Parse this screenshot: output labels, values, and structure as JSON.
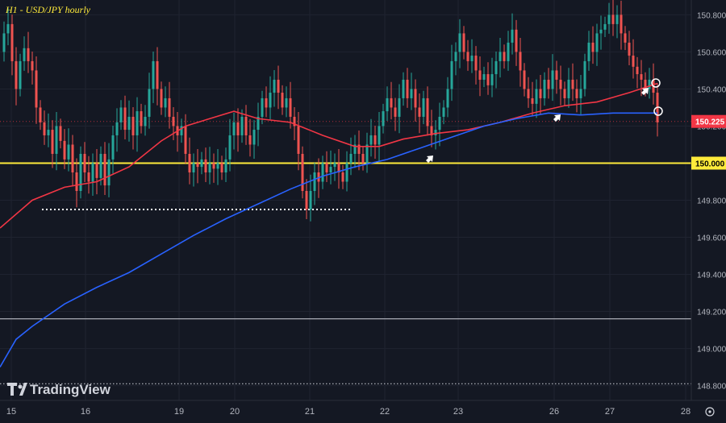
{
  "chart_data": {
    "type": "candlestick",
    "title": "H1 - USD/JPY hourly",
    "branding": "TradingView",
    "y_axis": {
      "range": [
        148.72,
        150.88
      ],
      "ticks": [
        "150.800",
        "150.600",
        "150.400",
        "150.200",
        "150.000",
        "149.800",
        "149.600",
        "149.400",
        "149.200",
        "149.000",
        "148.800"
      ]
    },
    "x_axis": {
      "labels": [
        "15",
        "16",
        "19",
        "20",
        "21",
        "22",
        "23",
        "26",
        "27",
        "28"
      ]
    },
    "current_price": {
      "value": 150.225,
      "label": "150.225",
      "color": "#f23645"
    },
    "horizontal_lines": [
      {
        "value": 150.0,
        "label": "150.000",
        "color": "#ffeb3b",
        "style": "solid"
      },
      {
        "value": 149.75,
        "label": "",
        "color": "#ffffff",
        "style": "dotted"
      },
      {
        "value": 149.16,
        "label": "",
        "color": "#d1d4dc",
        "style": "solid"
      },
      {
        "value": 148.81,
        "label": "",
        "color": "#d1d4dc",
        "style": "dotted"
      }
    ],
    "moving_averages": [
      {
        "name": "",
        "color": "#f23645",
        "points": [
          [
            0,
            149.65
          ],
          [
            40,
            149.8
          ],
          [
            80,
            149.87
          ],
          [
            120,
            149.9
          ],
          [
            160,
            149.98
          ],
          [
            200,
            150.12
          ],
          [
            230,
            150.2
          ],
          [
            260,
            150.24
          ],
          [
            290,
            150.28
          ],
          [
            320,
            150.24
          ],
          [
            360,
            150.22
          ],
          [
            400,
            150.15
          ],
          [
            440,
            150.09
          ],
          [
            470,
            150.09
          ],
          [
            500,
            150.13
          ],
          [
            540,
            150.16
          ],
          [
            580,
            150.18
          ],
          [
            620,
            150.22
          ],
          [
            660,
            150.27
          ],
          [
            700,
            150.31
          ],
          [
            740,
            150.33
          ],
          [
            780,
            150.38
          ],
          [
            815,
            150.43
          ]
        ]
      },
      {
        "name": "",
        "color": "#2962ff",
        "points": [
          [
            0,
            148.9
          ],
          [
            20,
            149.05
          ],
          [
            40,
            149.12
          ],
          [
            80,
            149.24
          ],
          [
            120,
            149.33
          ],
          [
            160,
            149.41
          ],
          [
            200,
            149.51
          ],
          [
            240,
            149.61
          ],
          [
            280,
            149.7
          ],
          [
            320,
            149.78
          ],
          [
            360,
            149.86
          ],
          [
            400,
            149.93
          ],
          [
            440,
            149.98
          ],
          [
            480,
            150.02
          ],
          [
            520,
            150.08
          ],
          [
            560,
            150.14
          ],
          [
            600,
            150.2
          ],
          [
            640,
            150.24
          ],
          [
            680,
            150.27
          ],
          [
            720,
            150.26
          ],
          [
            760,
            150.27
          ],
          [
            790,
            150.27
          ],
          [
            815,
            150.27
          ]
        ]
      }
    ],
    "price_path": [
      [
        0,
        150.6
      ],
      [
        5,
        150.7
      ],
      [
        10,
        150.75
      ],
      [
        15,
        150.55
      ],
      [
        20,
        150.4
      ],
      [
        25,
        150.55
      ],
      [
        30,
        150.62
      ],
      [
        35,
        150.55
      ],
      [
        40,
        150.5
      ],
      [
        45,
        150.3
      ],
      [
        50,
        150.22
      ],
      [
        55,
        150.15
      ],
      [
        60,
        150.18
      ],
      [
        65,
        150.05
      ],
      [
        70,
        150.2
      ],
      [
        75,
        150.12
      ],
      [
        80,
        150.02
      ],
      [
        85,
        150.1
      ],
      [
        90,
        149.95
      ],
      [
        95,
        149.85
      ],
      [
        100,
        150.05
      ],
      [
        105,
        149.95
      ],
      [
        110,
        149.9
      ],
      [
        115,
        150.0
      ],
      [
        120,
        149.92
      ],
      [
        125,
        150.05
      ],
      [
        130,
        149.88
      ],
      [
        135,
        150.02
      ],
      [
        140,
        150.15
      ],
      [
        145,
        150.22
      ],
      [
        150,
        150.3
      ],
      [
        155,
        150.18
      ],
      [
        160,
        150.25
      ],
      [
        165,
        150.15
      ],
      [
        170,
        150.28
      ],
      [
        175,
        150.2
      ],
      [
        180,
        150.25
      ],
      [
        185,
        150.4
      ],
      [
        190,
        150.55
      ],
      [
        195,
        150.4
      ],
      [
        200,
        150.3
      ],
      [
        205,
        150.35
      ],
      [
        210,
        150.25
      ],
      [
        215,
        150.2
      ],
      [
        220,
        150.15
      ],
      [
        225,
        150.2
      ],
      [
        230,
        150.05
      ],
      [
        235,
        149.95
      ],
      [
        240,
        150.0
      ],
      [
        245,
        149.98
      ],
      [
        250,
        150.02
      ],
      [
        255,
        149.95
      ],
      [
        260,
        150.0
      ],
      [
        265,
        149.97
      ],
      [
        270,
        150.0
      ],
      [
        275,
        149.95
      ],
      [
        280,
        150.02
      ],
      [
        285,
        150.15
      ],
      [
        290,
        150.22
      ],
      [
        295,
        150.15
      ],
      [
        300,
        150.25
      ],
      [
        305,
        150.15
      ],
      [
        310,
        150.1
      ],
      [
        315,
        150.18
      ],
      [
        320,
        150.25
      ],
      [
        325,
        150.35
      ],
      [
        330,
        150.3
      ],
      [
        335,
        150.38
      ],
      [
        340,
        150.45
      ],
      [
        345,
        150.38
      ],
      [
        350,
        150.3
      ],
      [
        355,
        150.35
      ],
      [
        360,
        150.25
      ],
      [
        365,
        150.2
      ],
      [
        370,
        150.05
      ],
      [
        375,
        149.85
      ],
      [
        380,
        149.75
      ],
      [
        385,
        149.85
      ],
      [
        390,
        149.95
      ],
      [
        395,
        149.9
      ],
      [
        400,
        150.0
      ],
      [
        405,
        149.95
      ],
      [
        410,
        149.98
      ],
      [
        415,
        150.0
      ],
      [
        420,
        149.95
      ],
      [
        425,
        149.9
      ],
      [
        430,
        150.0
      ],
      [
        435,
        150.05
      ],
      [
        440,
        150.1
      ],
      [
        445,
        150.05
      ],
      [
        450,
        150.0
      ],
      [
        455,
        150.1
      ],
      [
        460,
        150.15
      ],
      [
        465,
        150.1
      ],
      [
        470,
        150.2
      ],
      [
        475,
        150.28
      ],
      [
        480,
        150.35
      ],
      [
        485,
        150.3
      ],
      [
        490,
        150.25
      ],
      [
        495,
        150.35
      ],
      [
        500,
        150.45
      ],
      [
        505,
        150.35
      ],
      [
        510,
        150.4
      ],
      [
        515,
        150.3
      ],
      [
        520,
        150.25
      ],
      [
        525,
        150.35
      ],
      [
        530,
        150.2
      ],
      [
        535,
        150.15
      ],
      [
        540,
        150.18
      ],
      [
        545,
        150.25
      ],
      [
        550,
        150.3
      ],
      [
        555,
        150.4
      ],
      [
        560,
        150.55
      ],
      [
        565,
        150.6
      ],
      [
        570,
        150.7
      ],
      [
        575,
        150.6
      ],
      [
        580,
        150.55
      ],
      [
        585,
        150.58
      ],
      [
        590,
        150.5
      ],
      [
        595,
        150.45
      ],
      [
        600,
        150.48
      ],
      [
        605,
        150.42
      ],
      [
        610,
        150.48
      ],
      [
        615,
        150.55
      ],
      [
        620,
        150.6
      ],
      [
        625,
        150.55
      ],
      [
        630,
        150.65
      ],
      [
        635,
        150.72
      ],
      [
        640,
        150.6
      ],
      [
        645,
        150.5
      ],
      [
        650,
        150.4
      ],
      [
        655,
        150.35
      ],
      [
        660,
        150.32
      ],
      [
        665,
        150.4
      ],
      [
        670,
        150.35
      ],
      [
        675,
        150.45
      ],
      [
        680,
        150.4
      ],
      [
        685,
        150.5
      ],
      [
        690,
        150.45
      ],
      [
        695,
        150.4
      ],
      [
        700,
        150.35
      ],
      [
        705,
        150.45
      ],
      [
        710,
        150.4
      ],
      [
        715,
        150.35
      ],
      [
        720,
        150.4
      ],
      [
        725,
        150.55
      ],
      [
        730,
        150.65
      ],
      [
        735,
        150.6
      ],
      [
        740,
        150.7
      ],
      [
        745,
        150.72
      ],
      [
        750,
        150.75
      ],
      [
        755,
        150.8
      ],
      [
        760,
        150.75
      ],
      [
        765,
        150.8
      ],
      [
        770,
        150.7
      ],
      [
        775,
        150.65
      ],
      [
        780,
        150.58
      ],
      [
        785,
        150.52
      ],
      [
        790,
        150.48
      ],
      [
        795,
        150.45
      ],
      [
        800,
        150.4
      ],
      [
        805,
        150.45
      ],
      [
        810,
        150.38
      ],
      [
        815,
        150.22
      ]
    ]
  }
}
